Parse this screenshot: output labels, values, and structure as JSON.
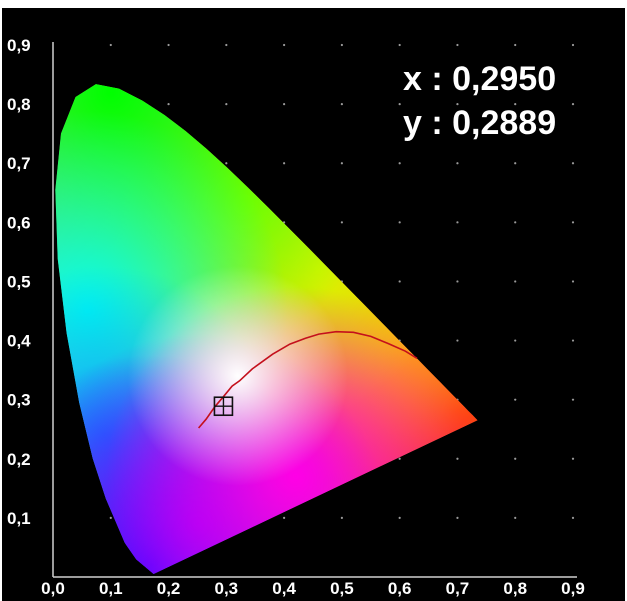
{
  "chart_data": {
    "type": "scatter",
    "title": "",
    "xlabel": "",
    "ylabel": "",
    "xlim": [
      0.0,
      0.9
    ],
    "ylim": [
      0.0,
      0.9
    ],
    "x_ticks": [
      "0,0",
      "0,1",
      "0,2",
      "0,3",
      "0,4",
      "0,5",
      "0,6",
      "0,7",
      "0,8",
      "0,9"
    ],
    "y_ticks": [
      "0,1",
      "0,2",
      "0,3",
      "0,4",
      "0,5",
      "0,6",
      "0,7",
      "0,8",
      "0,9"
    ],
    "grid": "dotted",
    "spectral_locus": [
      [
        0.1741,
        0.005
      ],
      [
        0.144,
        0.0297
      ],
      [
        0.1241,
        0.0578
      ],
      [
        0.0913,
        0.1327
      ],
      [
        0.0687,
        0.2007
      ],
      [
        0.0454,
        0.295
      ],
      [
        0.0235,
        0.4127
      ],
      [
        0.0082,
        0.5384
      ],
      [
        0.0039,
        0.6548
      ],
      [
        0.0139,
        0.7502
      ],
      [
        0.0389,
        0.812
      ],
      [
        0.0743,
        0.8338
      ],
      [
        0.1142,
        0.8262
      ],
      [
        0.1547,
        0.8059
      ],
      [
        0.1929,
        0.7816
      ],
      [
        0.2296,
        0.7543
      ],
      [
        0.2658,
        0.7243
      ],
      [
        0.3016,
        0.6923
      ],
      [
        0.3373,
        0.6589
      ],
      [
        0.3731,
        0.6245
      ],
      [
        0.4087,
        0.5896
      ],
      [
        0.4441,
        0.5547
      ],
      [
        0.4788,
        0.5202
      ],
      [
        0.5125,
        0.4866
      ],
      [
        0.5448,
        0.4544
      ],
      [
        0.5752,
        0.4242
      ],
      [
        0.6029,
        0.3965
      ],
      [
        0.627,
        0.3725
      ],
      [
        0.6482,
        0.3514
      ],
      [
        0.6658,
        0.334
      ],
      [
        0.6801,
        0.3197
      ],
      [
        0.6915,
        0.3083
      ],
      [
        0.7006,
        0.2993
      ],
      [
        0.7079,
        0.292
      ],
      [
        0.714,
        0.2859
      ],
      [
        0.719,
        0.2809
      ],
      [
        0.723,
        0.277
      ],
      [
        0.726,
        0.274
      ],
      [
        0.7347,
        0.2653
      ]
    ],
    "planckian_locus": [
      [
        0.252,
        0.252
      ],
      [
        0.265,
        0.267
      ],
      [
        0.28,
        0.288
      ],
      [
        0.295,
        0.305
      ],
      [
        0.31,
        0.323
      ],
      [
        0.323,
        0.332
      ],
      [
        0.345,
        0.352
      ],
      [
        0.38,
        0.377
      ],
      [
        0.41,
        0.394
      ],
      [
        0.437,
        0.404
      ],
      [
        0.46,
        0.411
      ],
      [
        0.49,
        0.415
      ],
      [
        0.52,
        0.414
      ],
      [
        0.55,
        0.407
      ],
      [
        0.58,
        0.395
      ],
      [
        0.61,
        0.382
      ],
      [
        0.63,
        0.37
      ]
    ],
    "marker": {
      "x": 0.295,
      "y": 0.2889
    },
    "readout": {
      "x_label": "x : 0,2950",
      "y_label": "y : 0,2889"
    },
    "colors": {
      "background": "#000000",
      "axis": "#cfcfcf",
      "grid": "#9a9a9a",
      "locus_curve": "#c4101c",
      "text": "#ffffff",
      "marker": "#111111"
    }
  }
}
